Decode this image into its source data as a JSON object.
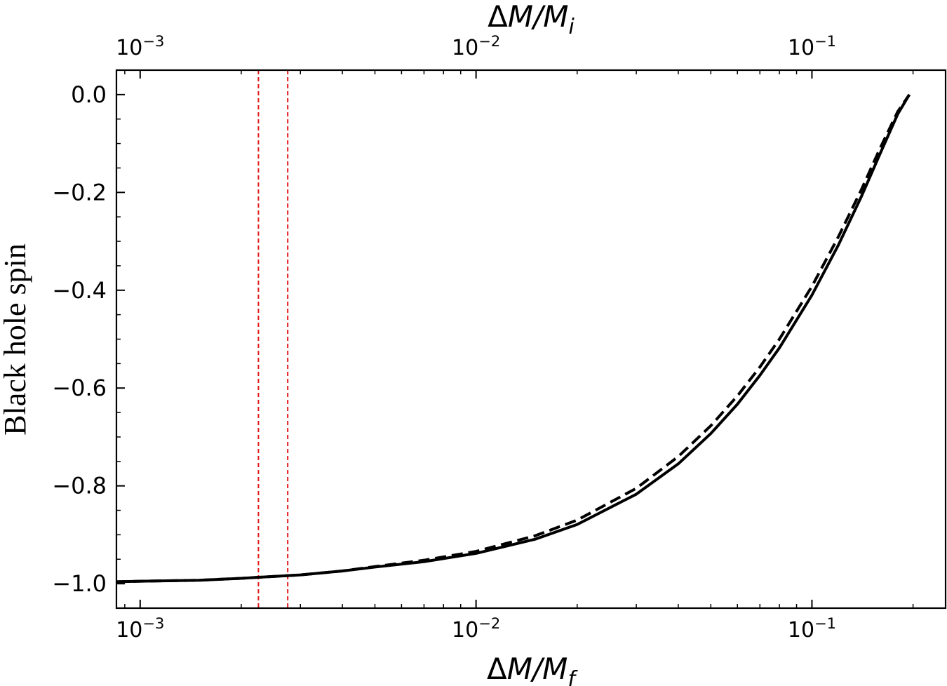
{
  "chart_data": {
    "type": "line",
    "xlabel_bottom": {
      "base": "ΔM/M",
      "sub": "f"
    },
    "xlabel_top": {
      "base": "ΔM/M",
      "sub": "i"
    },
    "ylabel": "Black hole spin",
    "xscale": "log",
    "xlim": [
      0.00085,
      0.25
    ],
    "ylim": [
      -1.05,
      0.05
    ],
    "xticks": [
      0.001,
      0.01,
      0.1
    ],
    "xtick_labels": [
      {
        "base": "10",
        "exp": "−3"
      },
      {
        "base": "10",
        "exp": "−2"
      },
      {
        "base": "10",
        "exp": "−1"
      }
    ],
    "yticks": [
      0.0,
      -0.2,
      -0.4,
      -0.6,
      -0.8,
      -1.0
    ],
    "ytick_labels": [
      "0.0",
      "−0.2",
      "−0.4",
      "−0.6",
      "−0.8",
      "−1.0"
    ],
    "vlines": [
      {
        "x": 0.00225,
        "color": "#e41a1c",
        "style": "dashed"
      },
      {
        "x": 0.00275,
        "color": "#e41a1c",
        "style": "dashed"
      }
    ],
    "series": [
      {
        "style": "solid",
        "color": "#000000",
        "x": [
          0.00085,
          0.001,
          0.0015,
          0.002,
          0.003,
          0.004,
          0.005,
          0.007,
          0.01,
          0.015,
          0.02,
          0.03,
          0.04,
          0.05,
          0.06,
          0.07,
          0.08,
          0.1,
          0.12,
          0.14,
          0.16,
          0.18,
          0.195
        ],
        "y": [
          -0.996,
          -0.995,
          -0.993,
          -0.989,
          -0.982,
          -0.974,
          -0.966,
          -0.955,
          -0.938,
          -0.909,
          -0.879,
          -0.817,
          -0.755,
          -0.693,
          -0.633,
          -0.574,
          -0.518,
          -0.41,
          -0.307,
          -0.21,
          -0.119,
          -0.04,
          0.0
        ]
      },
      {
        "style": "dashed",
        "color": "#000000",
        "x": [
          0.00085,
          0.001,
          0.0015,
          0.002,
          0.003,
          0.004,
          0.005,
          0.007,
          0.01,
          0.015,
          0.02,
          0.03,
          0.04,
          0.05,
          0.06,
          0.07,
          0.08,
          0.1,
          0.12,
          0.14,
          0.16,
          0.18,
          0.195
        ],
        "y": [
          -0.996,
          -0.995,
          -0.993,
          -0.989,
          -0.982,
          -0.974,
          -0.965,
          -0.952,
          -0.934,
          -0.902,
          -0.87,
          -0.805,
          -0.74,
          -0.677,
          -0.616,
          -0.557,
          -0.5,
          -0.392,
          -0.29,
          -0.196,
          -0.108,
          -0.035,
          0.0
        ]
      }
    ],
    "grid": false
  }
}
